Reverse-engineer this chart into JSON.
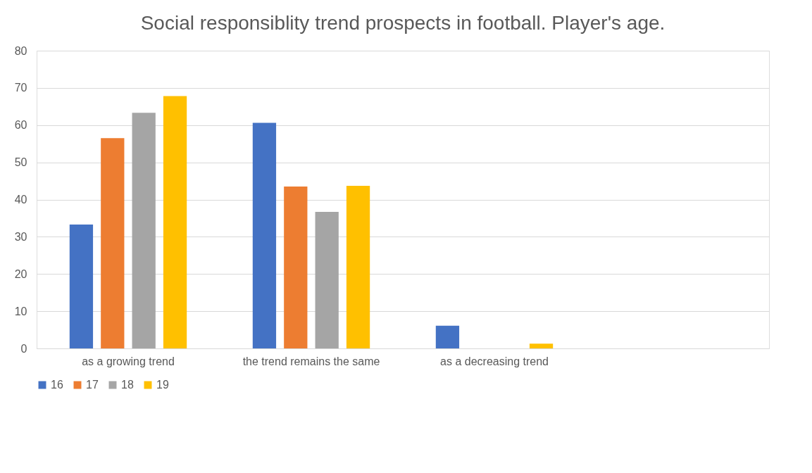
{
  "chart_data": {
    "type": "bar",
    "title": "Social responsiblity trend prospects in football. Player's age.",
    "categories": [
      "as a growing trend",
      "the trend remains the same",
      "as a decreasing trend",
      null
    ],
    "series": [
      {
        "name": "16",
        "color": "#4472c4",
        "values": [
          33.3,
          60.6,
          6.1,
          null
        ]
      },
      {
        "name": "17",
        "color": "#ed7d31",
        "values": [
          56.5,
          43.5,
          0,
          null
        ]
      },
      {
        "name": "18",
        "color": "#a5a5a5",
        "values": [
          63.3,
          36.7,
          0,
          null
        ]
      },
      {
        "name": "19",
        "color": "#ffc000",
        "values": [
          67.8,
          43.7,
          1.3,
          null
        ]
      }
    ],
    "ylim": [
      0,
      80
    ],
    "yticks": [
      0,
      10,
      20,
      30,
      40,
      50,
      60,
      70,
      80
    ],
    "grid": "y",
    "legend": "bottom"
  }
}
